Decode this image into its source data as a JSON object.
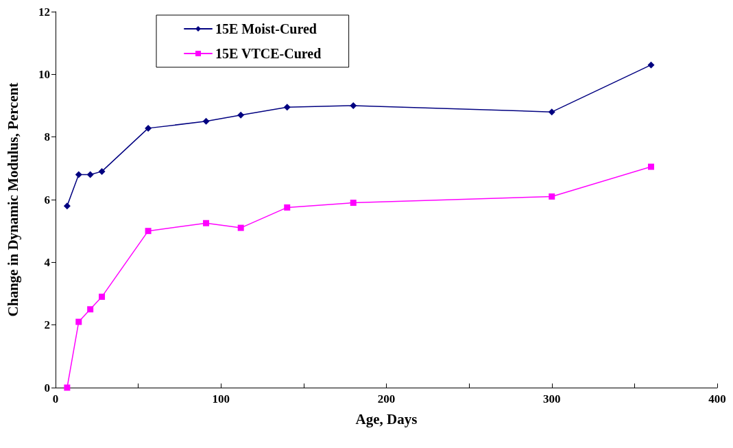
{
  "chart_data": {
    "type": "line",
    "xlabel": "Age, Days",
    "ylabel": "Change in Dynamic Modulus, Percent",
    "x": [
      7,
      14,
      21,
      28,
      56,
      91,
      112,
      140,
      180,
      300,
      360
    ],
    "series": [
      {
        "name": "15E Moist-Cured",
        "color": "#000080",
        "marker": "diamond",
        "values": [
          5.8,
          6.8,
          6.8,
          6.9,
          8.28,
          8.5,
          8.7,
          8.95,
          9.0,
          8.8,
          10.3
        ]
      },
      {
        "name": "15E VTCE-Cured",
        "color": "#ff00ff",
        "marker": "square",
        "values": [
          0,
          2.1,
          2.5,
          2.9,
          5.0,
          5.25,
          5.1,
          5.75,
          5.9,
          6.1,
          7.05
        ]
      }
    ],
    "xlim": [
      0,
      400
    ],
    "xticks": [
      0,
      {
        "value": 50,
        "label": null
      },
      100,
      {
        "value": 150,
        "label": null
      },
      200,
      {
        "value": 250,
        "label": null
      },
      300,
      {
        "value": 350,
        "label": null
      },
      400
    ],
    "ylim": [
      0,
      12
    ],
    "yticks": [
      0,
      2,
      4,
      6,
      8,
      10,
      12
    ],
    "grid": false,
    "legend": "top left",
    "line_style": "solid"
  }
}
